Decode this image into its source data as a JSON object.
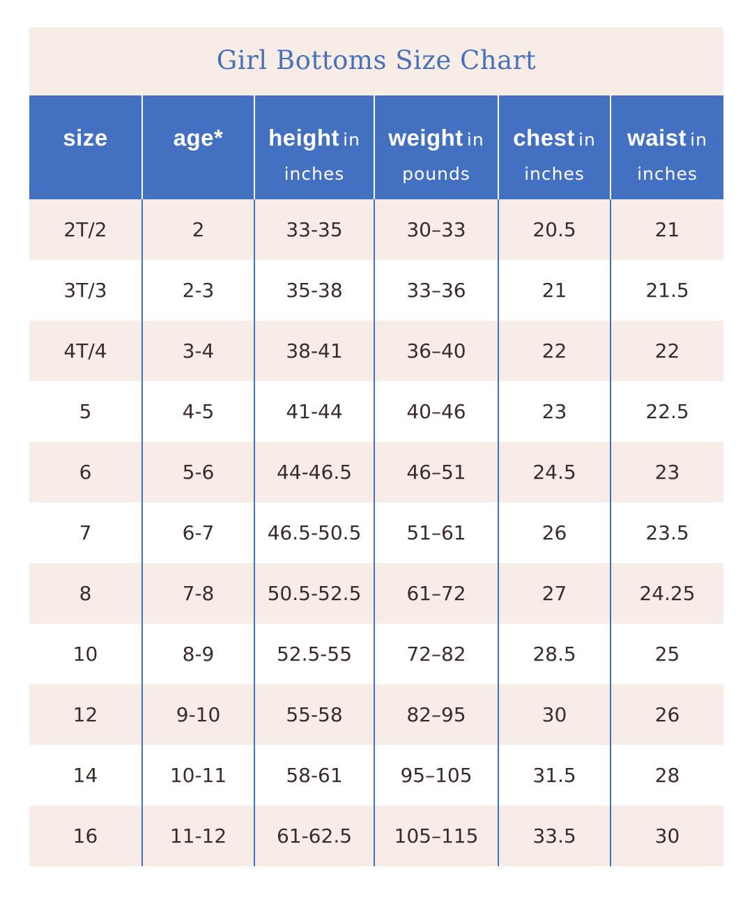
{
  "title": "Girl Bottoms Size Chart",
  "columns": [
    {
      "main": "size",
      "unit": ""
    },
    {
      "main": "age*",
      "unit": ""
    },
    {
      "main": "height",
      "unit": "in",
      "unit2": "inches"
    },
    {
      "main": "weight",
      "unit": "in",
      "unit2": "pounds"
    },
    {
      "main": "chest",
      "unit": "in",
      "unit2": "inches"
    },
    {
      "main": "waist",
      "unit": "in",
      "unit2": "inches"
    }
  ],
  "rows": [
    [
      "2T/2",
      "2",
      "33-35",
      "30–33",
      "20.5",
      "21"
    ],
    [
      "3T/3",
      "2-3",
      "35-38",
      "33–36",
      "21",
      "21.5"
    ],
    [
      "4T/4",
      "3-4",
      "38-41",
      "36–40",
      "22",
      "22"
    ],
    [
      "5",
      "4-5",
      "41-44",
      "40–46",
      "23",
      "22.5"
    ],
    [
      "6",
      "5-6",
      "44-46.5",
      "46–51",
      "24.5",
      "23"
    ],
    [
      "7",
      "6-7",
      "46.5-50.5",
      "51–61",
      "26",
      "23.5"
    ],
    [
      "8",
      "7-8",
      "50.5-52.5",
      "61–72",
      "27",
      "24.25"
    ],
    [
      "10",
      "8-9",
      "52.5-55",
      "72–82",
      "28.5",
      "25"
    ],
    [
      "12",
      "9-10",
      "55-58",
      "82–95",
      "30",
      "26"
    ],
    [
      "14",
      "10-11",
      "58-61",
      "95–105",
      "31.5",
      "28"
    ],
    [
      "16",
      "11-12",
      "61-62.5",
      "105–115",
      "33.5",
      "30"
    ]
  ],
  "colors": {
    "header_blue": "#4470c2",
    "title_blue": "#4770bd",
    "band_pink": "#f8ece6",
    "text_dark": "#3b2a2a"
  }
}
